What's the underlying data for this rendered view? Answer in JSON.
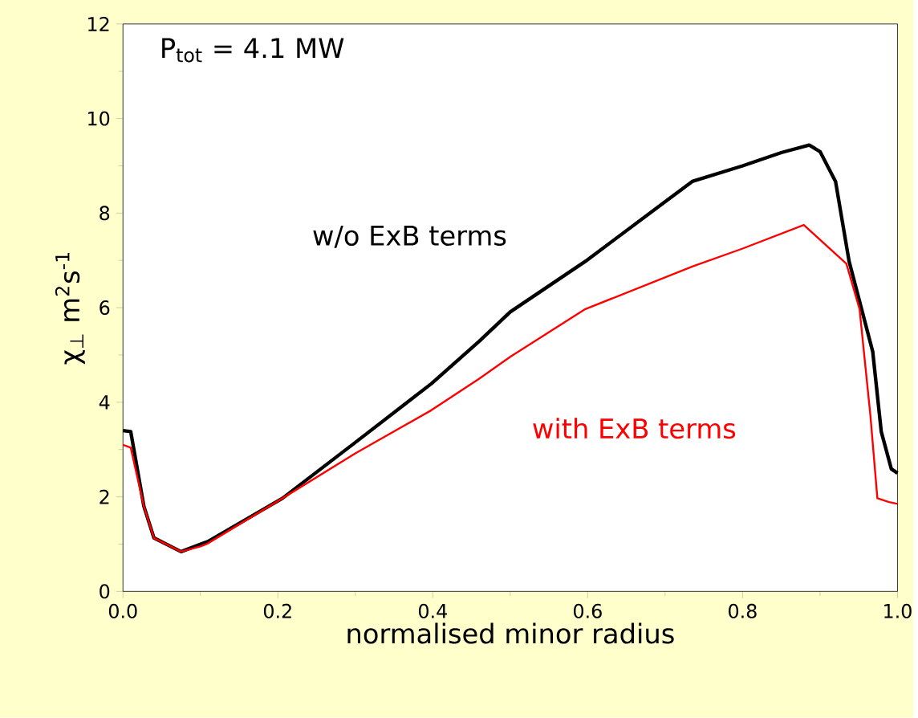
{
  "chart_data": {
    "type": "line",
    "xlabel": "normalised minor radius",
    "ylabel": "χ$_{⊥}$ m$^{2}$s$^{-1}$",
    "annotations": [
      "P$_{tot}$ = 4.1 MW"
    ],
    "xlim": [
      0,
      1.0
    ],
    "ylim": [
      0,
      12
    ],
    "xticks": [
      {
        "value": 0,
        "label": "0.0"
      },
      0.2,
      0.4,
      0.6,
      0.8,
      {
        "value": 1.0,
        "label": "1.0"
      }
    ],
    "yticks": [
      0,
      2,
      4,
      6,
      8,
      10,
      12
    ],
    "grid": false,
    "legend": false,
    "marker": "none",
    "line_style": "solid",
    "series": [
      {
        "name": "w/o ExB terms",
        "color": "#000000",
        "x": [
          0.0,
          0.01,
          0.027,
          0.04,
          0.075,
          0.109,
          0.206,
          0.3,
          0.398,
          0.46,
          0.5,
          0.597,
          0.735,
          0.8,
          0.85,
          0.886,
          0.9,
          0.92,
          0.9375,
          0.968,
          0.979,
          0.992,
          1.0
        ],
        "values": [
          3.4,
          3.38,
          1.8,
          1.13,
          0.84,
          1.05,
          1.97,
          3.15,
          4.39,
          5.29,
          5.91,
          6.98,
          8.67,
          9.0,
          9.28,
          9.44,
          9.3,
          8.67,
          6.98,
          5.07,
          3.38,
          2.59,
          2.5
        ]
      },
      {
        "name": "with ExB terms",
        "color": "#ff0000",
        "x": [
          0.0,
          0.01,
          0.027,
          0.04,
          0.075,
          0.1,
          0.109,
          0.206,
          0.3,
          0.398,
          0.46,
          0.5,
          0.597,
          0.735,
          0.8,
          0.879,
          0.934,
          0.951,
          0.965,
          0.974,
          0.989,
          1.0
        ],
        "values": [
          3.1,
          3.04,
          1.8,
          1.13,
          0.84,
          0.95,
          1.01,
          1.97,
          2.92,
          3.83,
          4.5,
          4.96,
          5.97,
          6.87,
          7.25,
          7.75,
          6.93,
          5.97,
          3.72,
          1.97,
          1.89,
          1.85
        ]
      }
    ]
  }
}
